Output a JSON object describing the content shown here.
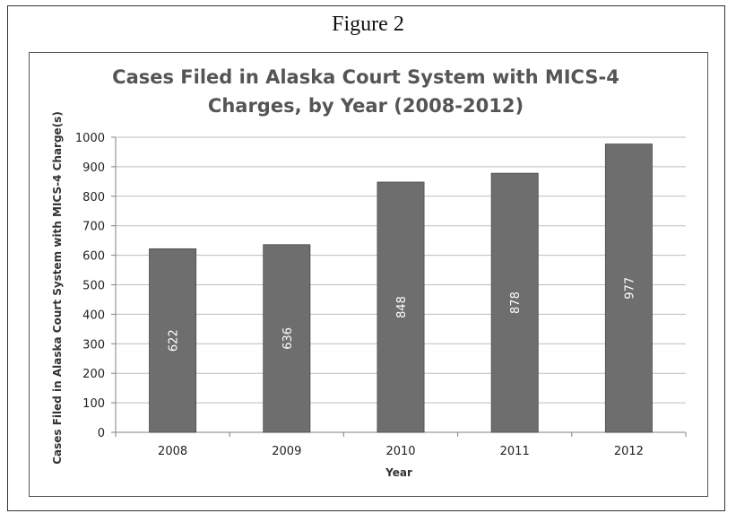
{
  "figure_label": "Figure 2",
  "chart_data": {
    "type": "bar",
    "title": "Cases Filed in Alaska Court System with MICS-4 Charges, by Year (2008-2012)",
    "title_lines": [
      "Cases Filed in Alaska Court System with MICS-4",
      "Charges, by Year (2008-2012)"
    ],
    "xlabel": "Year",
    "ylabel": "Cases Filed in Alaska Court System with MICS-4 Charge(s)",
    "categories": [
      "2008",
      "2009",
      "2010",
      "2011",
      "2012"
    ],
    "values": [
      622,
      636,
      848,
      878,
      977
    ],
    "data_labels": [
      "622",
      "636",
      "848",
      "878",
      "977"
    ],
    "ylim": [
      0,
      1000
    ],
    "yticks": [
      0,
      100,
      200,
      300,
      400,
      500,
      600,
      700,
      800,
      900,
      1000
    ],
    "grid": true,
    "legend": "none",
    "bar_color": "#6e6e6e"
  }
}
